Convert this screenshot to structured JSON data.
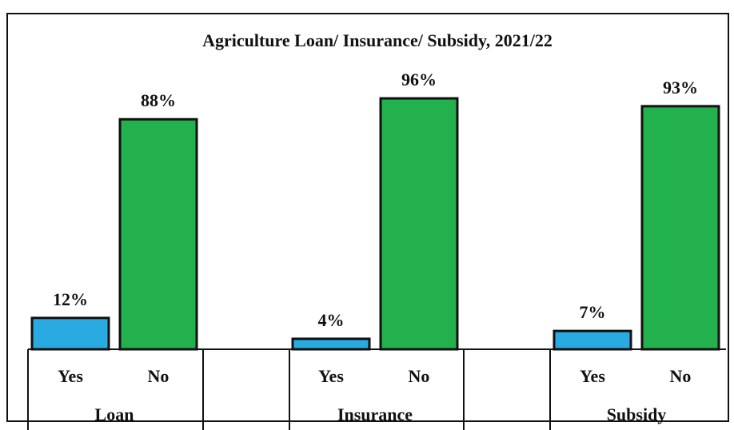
{
  "chart_data": {
    "type": "bar",
    "title": "Agriculture Loan/ Insurance/ Subsidy,  2021/22",
    "groups": [
      {
        "label": "Loan",
        "bars": [
          {
            "label": "Yes",
            "value": 12,
            "display": "12%"
          },
          {
            "label": "No",
            "value": 88,
            "display": "88%"
          }
        ]
      },
      {
        "label": "Insurance",
        "bars": [
          {
            "label": "Yes",
            "value": 4,
            "display": "4%"
          },
          {
            "label": "No",
            "value": 96,
            "display": "96%"
          }
        ]
      },
      {
        "label": "Subsidy",
        "bars": [
          {
            "label": "Yes",
            "value": 7,
            "display": "7%"
          },
          {
            "label": "No",
            "value": 93,
            "display": "93%"
          }
        ]
      }
    ],
    "ylim": [
      0,
      100
    ],
    "grid": false,
    "legend": "none",
    "colors": {
      "Yes": "#29abe2",
      "No": "#22b14c"
    }
  }
}
